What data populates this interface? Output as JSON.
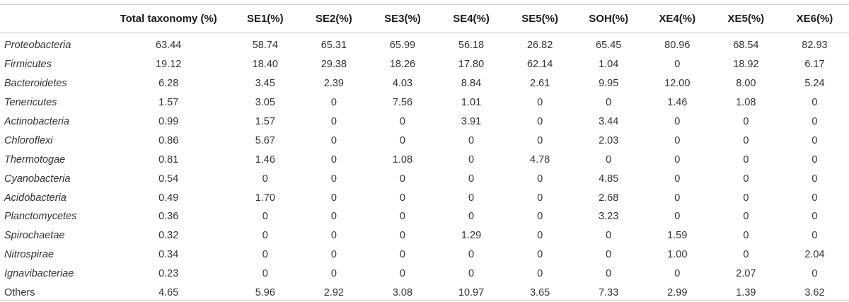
{
  "table": {
    "columns": [
      "",
      "Total taxonomy (%)",
      "SE1(%)",
      "SE2(%)",
      "SE3(%)",
      "SE4(%)",
      "SE5(%)",
      "SOH(%)",
      "XE4(%)",
      "XE5(%)",
      "XE6(%)"
    ],
    "rows": [
      {
        "name": "Proteobacteria",
        "italic": true,
        "values": [
          "63.44",
          "58.74",
          "65.31",
          "65.99",
          "56.18",
          "26.82",
          "65.45",
          "80.96",
          "68.54",
          "82.93"
        ]
      },
      {
        "name": "Firmicutes",
        "italic": true,
        "values": [
          "19.12",
          "18.40",
          "29.38",
          "18.26",
          "17.80",
          "62.14",
          "1.04",
          "0",
          "18.92",
          "6.17"
        ]
      },
      {
        "name": "Bacteroidetes",
        "italic": true,
        "values": [
          "6.28",
          "3.45",
          "2.39",
          "4.03",
          "8.84",
          "2.61",
          "9.95",
          "12.00",
          "8.00",
          "5.24"
        ]
      },
      {
        "name": "Tenericutes",
        "italic": true,
        "values": [
          "1.57",
          "3.05",
          "0",
          "7.56",
          "1.01",
          "0",
          "0",
          "1.46",
          "1.08",
          "0"
        ]
      },
      {
        "name": "Actinobacteria",
        "italic": true,
        "values": [
          "0.99",
          "1.57",
          "0",
          "0",
          "3.91",
          "0",
          "3.44",
          "0",
          "0",
          "0"
        ]
      },
      {
        "name": "Chloroflexi",
        "italic": true,
        "values": [
          "0.86",
          "5.67",
          "0",
          "0",
          "0",
          "0",
          "2.03",
          "0",
          "0",
          "0"
        ]
      },
      {
        "name": "Thermotogae",
        "italic": true,
        "values": [
          "0.81",
          "1.46",
          "0",
          "1.08",
          "0",
          "4.78",
          "0",
          "0",
          "0",
          "0"
        ]
      },
      {
        "name": "Cyanobacteria",
        "italic": true,
        "values": [
          "0.54",
          "0",
          "0",
          "0",
          "0",
          "0",
          "4.85",
          "0",
          "0",
          "0"
        ]
      },
      {
        "name": "Acidobacteria",
        "italic": true,
        "values": [
          "0.49",
          "1.70",
          "0",
          "0",
          "0",
          "0",
          "2.68",
          "0",
          "0",
          "0"
        ]
      },
      {
        "name": "Planctomycetes",
        "italic": true,
        "values": [
          "0.36",
          "0",
          "0",
          "0",
          "0",
          "0",
          "3.23",
          "0",
          "0",
          "0"
        ]
      },
      {
        "name": "Spirochaetae",
        "italic": true,
        "values": [
          "0.32",
          "0",
          "0",
          "0",
          "1.29",
          "0",
          "0",
          "1.59",
          "0",
          "0"
        ]
      },
      {
        "name": "Nitrospirae",
        "italic": true,
        "values": [
          "0.34",
          "0",
          "0",
          "0",
          "0",
          "0",
          "0",
          "1.00",
          "0",
          "2.04"
        ]
      },
      {
        "name": "Ignavibacteriae",
        "italic": true,
        "values": [
          "0.23",
          "0",
          "0",
          "0",
          "0",
          "0",
          "0",
          "0",
          "2.07",
          "0"
        ]
      },
      {
        "name": "Others",
        "italic": false,
        "values": [
          "4.65",
          "5.96",
          "2.92",
          "3.08",
          "10.97",
          "3.65",
          "7.33",
          "2.99",
          "1.39",
          "3.62"
        ]
      }
    ]
  }
}
